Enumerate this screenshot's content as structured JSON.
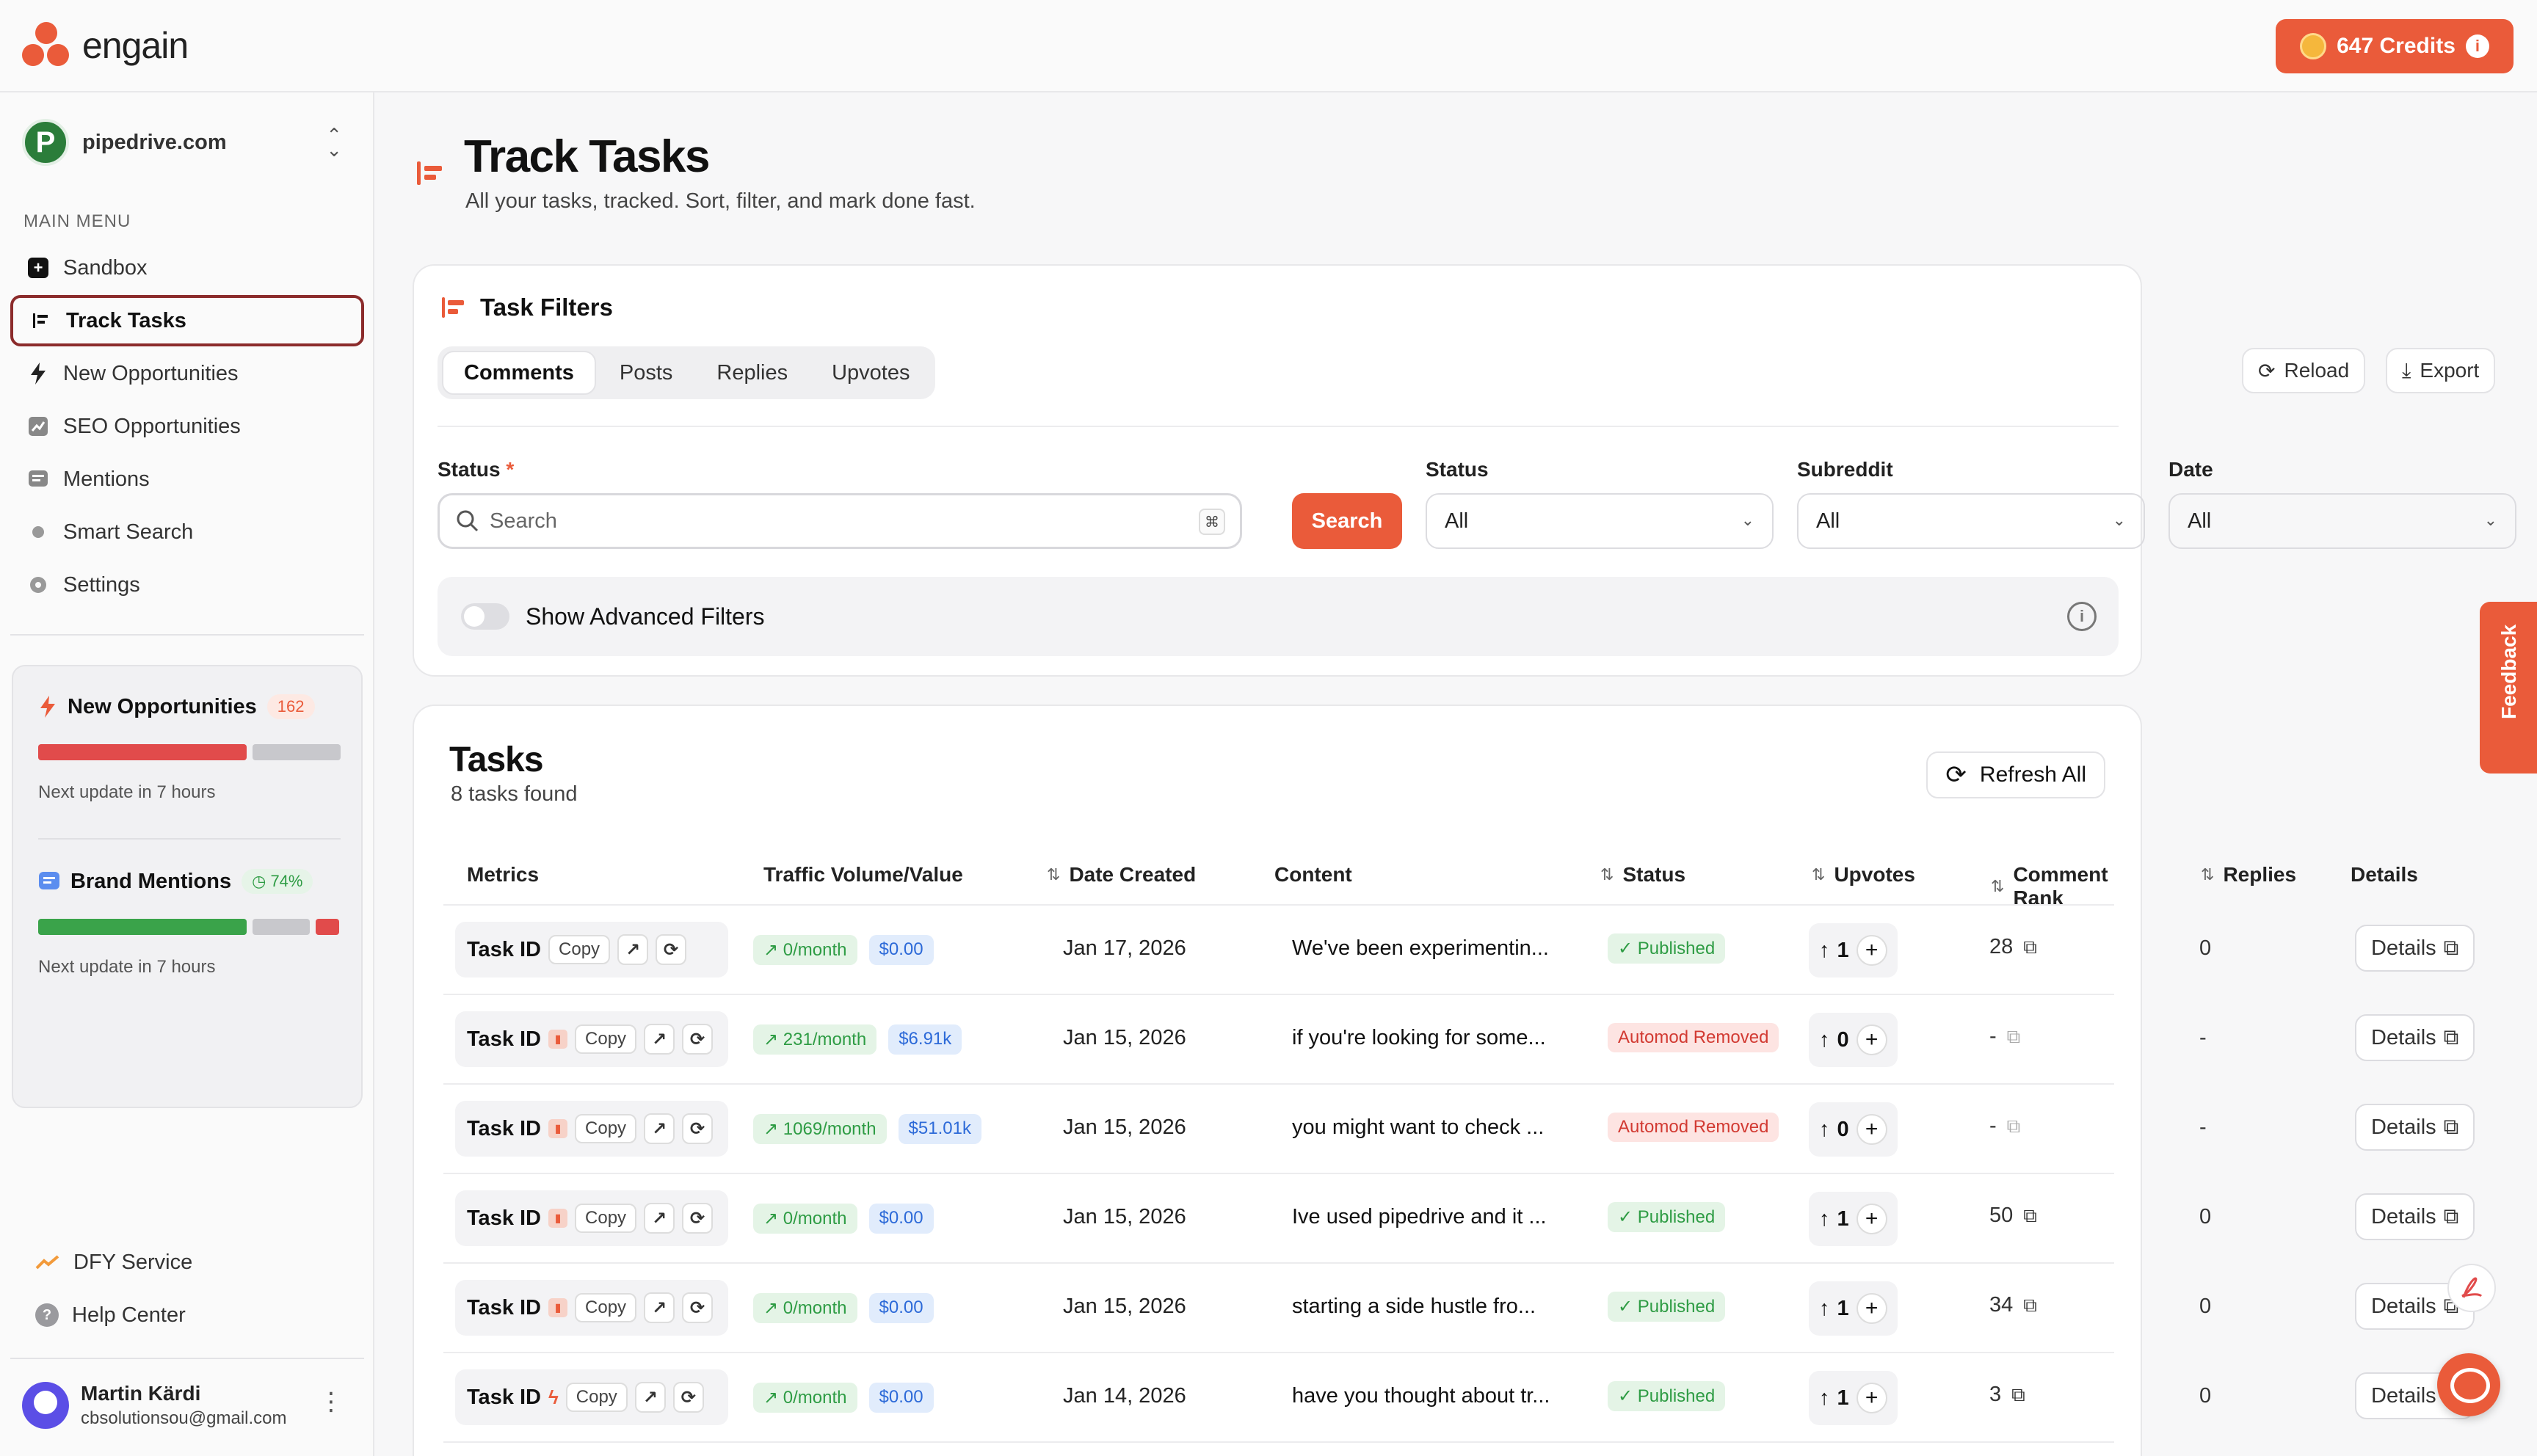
{
  "app": {
    "name": "engain"
  },
  "credits": {
    "label": "647 Credits"
  },
  "workspace": {
    "name": "pipedrive.com",
    "initial": "P"
  },
  "sidebar": {
    "menu_label": "MAIN MENU",
    "items": [
      {
        "label": "Sandbox",
        "icon": "plus-square-icon"
      },
      {
        "label": "Track Tasks",
        "icon": "list-icon",
        "active": true
      },
      {
        "label": "New Opportunities",
        "icon": "lightning-icon"
      },
      {
        "label": "SEO Opportunities",
        "icon": "chart-icon"
      },
      {
        "label": "Mentions",
        "icon": "message-icon"
      },
      {
        "label": "Smart Search",
        "icon": "search-dot-icon"
      },
      {
        "label": "Settings",
        "icon": "gear-icon"
      }
    ],
    "stats": [
      {
        "title": "New Opportunities",
        "badge": "162",
        "foot": "Next update in 7 hours",
        "fill": 0.7
      },
      {
        "title": "Brand Mentions",
        "badge": "74%",
        "foot": "Next update in 7 hours",
        "fill": 0.74
      }
    ],
    "bottom": [
      {
        "label": "DFY Service",
        "icon": "trend-icon"
      },
      {
        "label": "Help Center",
        "icon": "help-icon"
      }
    ],
    "user": {
      "name": "Martin Kärdi",
      "email": "cbsolutionsou@gmail.com"
    }
  },
  "page": {
    "title": "Track Tasks",
    "subtitle": "All your tasks, tracked. Sort, filter, and mark done fast."
  },
  "filters": {
    "title": "Task Filters",
    "tabs": [
      "Comments",
      "Posts",
      "Replies",
      "Upvotes"
    ],
    "active_tab": "Comments",
    "reload_label": "Reload",
    "export_label": "Export",
    "status_label": "Status",
    "search_placeholder": "Search",
    "search_kbd": "⌘",
    "search_button": "Search",
    "status2_label": "Status",
    "status2_value": "All",
    "subreddit_label": "Subreddit",
    "subreddit_value": "All",
    "date_label": "Date",
    "date_value": "All",
    "advanced_label": "Show Advanced Filters"
  },
  "tasks": {
    "title": "Tasks",
    "count": "8 tasks found",
    "refresh_label": "Refresh All",
    "columns": [
      "Metrics",
      "Traffic Volume/Value",
      "Date Created",
      "Content",
      "Status",
      "Upvotes",
      "Comment Rank",
      "Replies",
      "Details"
    ],
    "rows": [
      {
        "task": "Task ID",
        "flag": "",
        "copy": "Copy",
        "traffic": "0/month",
        "value": "$0.00",
        "date": "Jan 17, 2026",
        "content": "We've been experimentin...",
        "status": "Published",
        "status_type": "pub",
        "upvotes": "1",
        "rank": "28",
        "replies": "0",
        "details": "Details"
      },
      {
        "task": "Task ID",
        "flag": "chart",
        "copy": "Copy",
        "traffic": "231/month",
        "value": "$6.91k",
        "date": "Jan 15, 2026",
        "content": "if you're looking for some...",
        "status": "Automod Removed",
        "status_type": "rem",
        "upvotes": "0",
        "rank": "-",
        "replies": "-",
        "details": "Details"
      },
      {
        "task": "Task ID",
        "flag": "chart",
        "copy": "Copy",
        "traffic": "1069/month",
        "value": "$51.01k",
        "date": "Jan 15, 2026",
        "content": "you might want to check ...",
        "status": "Automod Removed",
        "status_type": "rem",
        "upvotes": "0",
        "rank": "-",
        "replies": "-",
        "details": "Details"
      },
      {
        "task": "Task ID",
        "flag": "chart",
        "copy": "Copy",
        "traffic": "0/month",
        "value": "$0.00",
        "date": "Jan 15, 2026",
        "content": "Ive used pipedrive and it ...",
        "status": "Published",
        "status_type": "pub",
        "upvotes": "1",
        "rank": "50",
        "replies": "0",
        "details": "Details"
      },
      {
        "task": "Task ID",
        "flag": "chart",
        "copy": "Copy",
        "traffic": "0/month",
        "value": "$0.00",
        "date": "Jan 15, 2026",
        "content": "starting a side hustle fro...",
        "status": "Published",
        "status_type": "pub",
        "upvotes": "1",
        "rank": "34",
        "replies": "0",
        "details": "Details"
      },
      {
        "task": "Task ID",
        "flag": "bolt",
        "copy": "Copy",
        "traffic": "0/month",
        "value": "$0.00",
        "date": "Jan 14, 2026",
        "content": "have you thought about tr...",
        "status": "Published",
        "status_type": "pub",
        "upvotes": "1",
        "rank": "3",
        "replies": "0",
        "details": "Details"
      }
    ]
  },
  "feedback_label": "Feedback",
  "colors": {
    "accent": "#ea5b3a",
    "success": "#2e9c44",
    "danger": "#d23a32",
    "info": "#2d6ad8"
  }
}
